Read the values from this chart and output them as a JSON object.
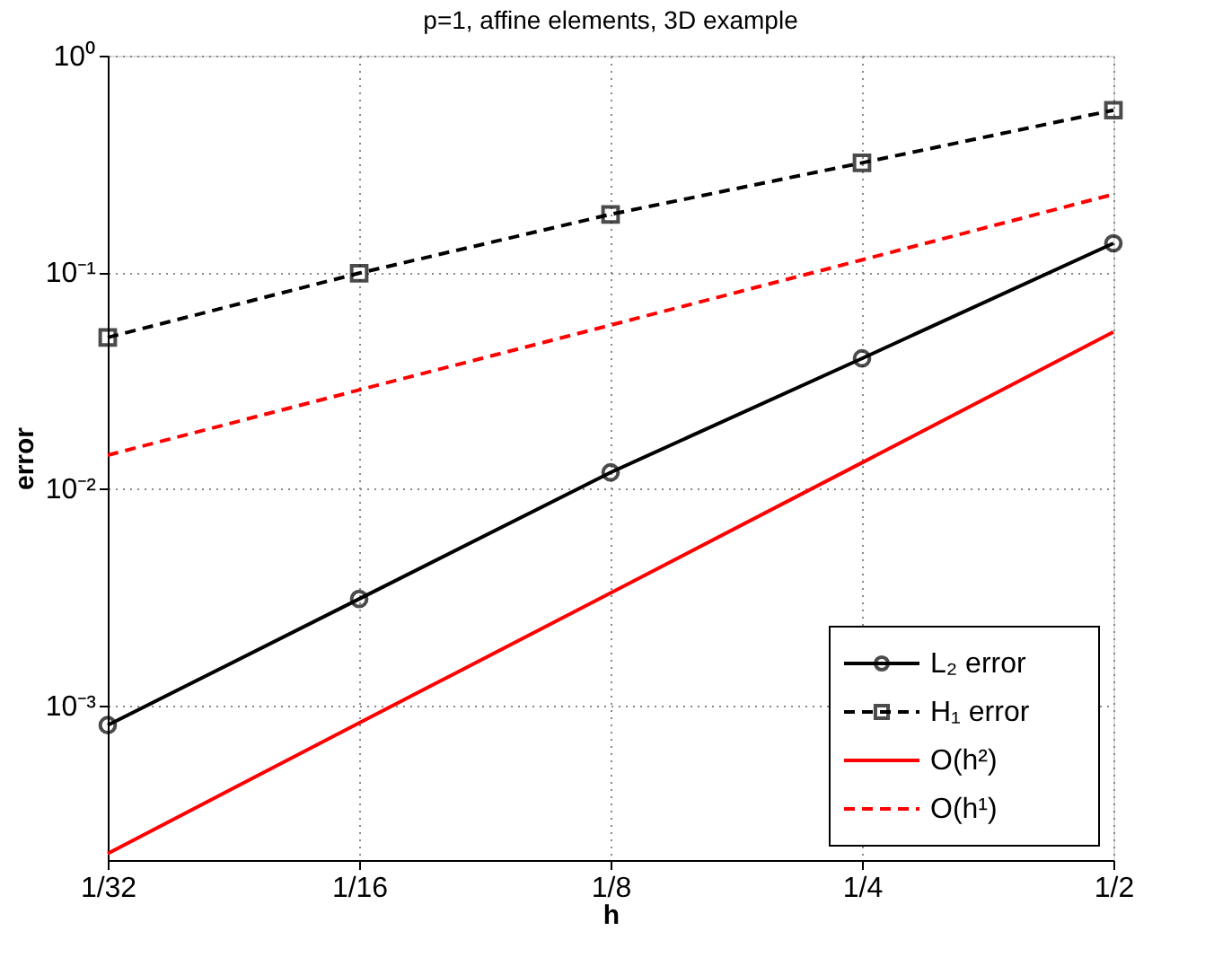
{
  "chart_data": {
    "type": "line",
    "title": "p=1, affine elements, 3D example",
    "xlabel": "h",
    "ylabel": "error",
    "log": "xy",
    "grid": true,
    "legend": "bottom right",
    "x": [
      0.03125,
      0.0625,
      0.125,
      0.25,
      0.5
    ],
    "xlim": [
      0.03125,
      0.5
    ],
    "xticks": [
      {
        "value": 0.03125,
        "label": "1/32"
      },
      {
        "value": 0.0625,
        "label": "1/16"
      },
      {
        "value": 0.125,
        "label": "1/8"
      },
      {
        "value": 0.25,
        "label": "1/4"
      },
      {
        "value": 0.5,
        "label": "1/2"
      }
    ],
    "ylim": [
      0.000193,
      1
    ],
    "yticks": [
      {
        "value": 0.001,
        "label": "10⁻³"
      },
      {
        "value": 0.01,
        "label": "10⁻²"
      },
      {
        "value": 0.1,
        "label": "10⁻¹"
      },
      {
        "value": 1,
        "label": "10⁰"
      }
    ],
    "series": [
      {
        "name": "L₂ error",
        "color": "#000000",
        "marker": "circle",
        "line_style": "solid",
        "values": [
          0.00081,
          0.0031,
          0.0119,
          0.04,
          0.136
        ]
      },
      {
        "name": "H₁ error",
        "color": "#000000",
        "marker": "square",
        "line_style": "dashed",
        "values": [
          0.05,
          0.099,
          0.185,
          0.32,
          0.56
        ]
      },
      {
        "name": "O(h²)",
        "color": "#ff0000",
        "line_style": "solid",
        "values": [
          0.000207,
          0.00083,
          0.0033,
          0.0132,
          0.053
        ]
      },
      {
        "name": "O(h¹)",
        "color": "#ff0000",
        "line_style": "dashed",
        "values": [
          0.0143,
          0.0286,
          0.057,
          0.114,
          0.229
        ]
      }
    ]
  }
}
